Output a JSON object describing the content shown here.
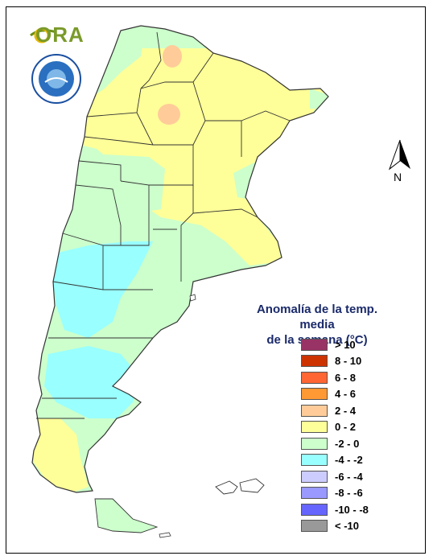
{
  "logo": {
    "ora_text": "ORA",
    "seal_name": "smn-argentina-seal"
  },
  "north_arrow": {
    "label": "N"
  },
  "legend": {
    "title_line1": "Anomalía de la temp. media",
    "title_line2": "de la semana (°C)",
    "classes": [
      {
        "label": "> 10",
        "color": "#993366"
      },
      {
        "label": "8 - 10",
        "color": "#cc3300"
      },
      {
        "label": "6 - 8",
        "color": "#ff6633"
      },
      {
        "label": "4 - 6",
        "color": "#ff9933"
      },
      {
        "label": "2 - 4",
        "color": "#ffcc99"
      },
      {
        "label": "0 - 2",
        "color": "#ffff99"
      },
      {
        "label": "-2 - 0",
        "color": "#ccffcc"
      },
      {
        "label": "-4 - -2",
        "color": "#99ffff"
      },
      {
        "label": "-6 - -4",
        "color": "#ccccff"
      },
      {
        "label": "-8 - -6",
        "color": "#9999ff"
      },
      {
        "label": "-10 - -8",
        "color": "#6666ff"
      },
      {
        "label": "< -10",
        "color": "#999999"
      }
    ]
  },
  "colors": {
    "warm_2_4": "#ffcc99",
    "warm_0_2": "#ffff99",
    "cool_-2_0": "#ccffcc",
    "cool_-4_-2": "#99ffff",
    "boundary": "#333333"
  }
}
